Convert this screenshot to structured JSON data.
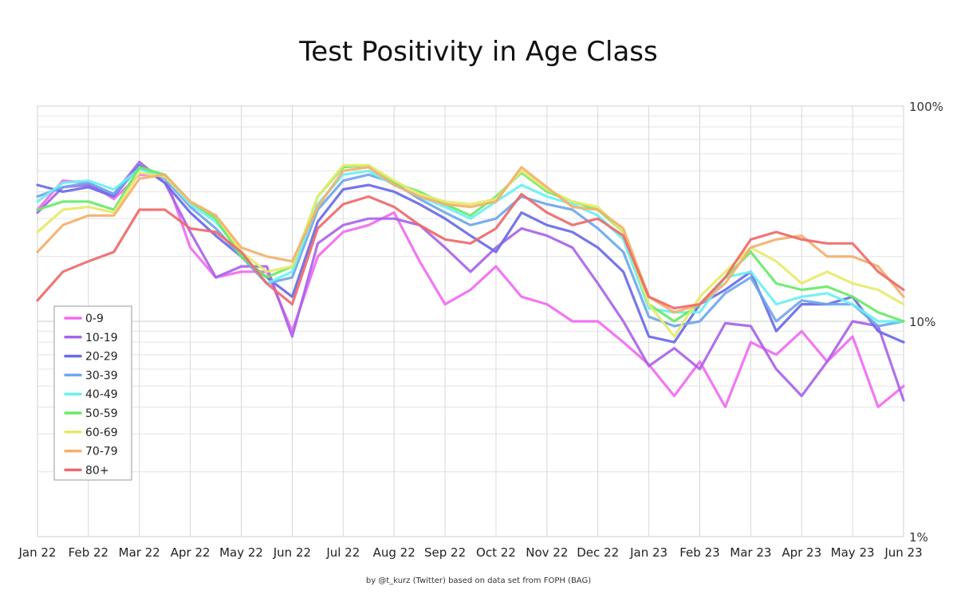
{
  "chart_data": {
    "type": "line",
    "title": "Test Positivity in Age Class",
    "credit": "by @t_kurz (Twitter) based on data set from FOPH (BAG)",
    "yscale": "log",
    "ylim": [
      1,
      100
    ],
    "y_tick_labels": [
      {
        "value": 100,
        "label": "100%"
      },
      {
        "value": 10,
        "label": "10%"
      },
      {
        "value": 1,
        "label": "1%"
      }
    ],
    "x_tick_labels": [
      "Jan 22",
      "Feb 22",
      "Mar 22",
      "Apr 22",
      "May 22",
      "Jun 22",
      "Jul 22",
      "Aug 22",
      "Sep 22",
      "Oct 22",
      "Nov 22",
      "Dec 22",
      "Jan 23",
      "Feb 23",
      "Mar 23",
      "Apr 23",
      "May 23",
      "Jun 23"
    ],
    "grid": true,
    "legend_position": "lower-left",
    "series": [
      {
        "name": "0-9",
        "color": "#f26af2",
        "x": [
          0,
          0.5,
          1,
          1.5,
          2,
          2.5,
          3,
          3.5,
          4,
          4.5,
          5,
          5.5,
          6,
          6.5,
          7,
          7.5,
          8,
          8.5,
          9,
          9.5,
          10,
          10.5,
          11,
          11.5,
          12,
          12.5,
          13,
          13.5,
          14,
          14.5,
          15,
          15.5,
          16,
          16.5,
          17
        ],
        "values": [
          33,
          45,
          44,
          37,
          48,
          48,
          22,
          16,
          17,
          17,
          9,
          20,
          26,
          28,
          32,
          19,
          12,
          14,
          18,
          13,
          12,
          10,
          10,
          8,
          6.3,
          4.5,
          6.5,
          4,
          8,
          7,
          9,
          6.5,
          8.5,
          4,
          5
        ]
      },
      {
        "name": "10-19",
        "color": "#a964e8",
        "x": [
          0,
          0.5,
          1,
          1.5,
          2,
          2.5,
          3,
          3.5,
          4,
          4.5,
          5,
          5.5,
          6,
          6.5,
          7,
          7.5,
          8,
          8.5,
          9,
          9.5,
          10,
          10.5,
          11,
          11.5,
          12,
          12.5,
          13,
          13.5,
          14,
          14.5,
          15,
          15.5,
          16,
          16.5,
          17
        ],
        "values": [
          32,
          42,
          43,
          39,
          55,
          44,
          26,
          16,
          18,
          18,
          8.5,
          23,
          28,
          30,
          30,
          28,
          22,
          17,
          22,
          27,
          25,
          22,
          15,
          10,
          6.2,
          7.5,
          6,
          9.8,
          9.5,
          6,
          4.5,
          6.5,
          10,
          9.5,
          4.3
        ]
      },
      {
        "name": "20-29",
        "color": "#6a6ae8",
        "x": [
          0,
          0.5,
          1,
          1.5,
          2,
          2.5,
          3,
          3.5,
          4,
          4.5,
          5,
          5.5,
          6,
          6.5,
          7,
          7.5,
          8,
          8.5,
          9,
          9.5,
          10,
          10.5,
          11,
          11.5,
          12,
          12.5,
          13,
          13.5,
          14,
          14.5,
          15,
          15.5,
          16,
          16.5,
          17
        ],
        "values": [
          43,
          40,
          42,
          38,
          53,
          44,
          32,
          25,
          20,
          16,
          13,
          29,
          41,
          43,
          40,
          35,
          30,
          25,
          21,
          32,
          28,
          26,
          22,
          17,
          8.5,
          8,
          12,
          14,
          17,
          9,
          12,
          12,
          13,
          9,
          8
        ]
      },
      {
        "name": "30-39",
        "color": "#6fa7ec",
        "x": [
          0,
          0.5,
          1,
          1.5,
          2,
          2.5,
          3,
          3.5,
          4,
          4.5,
          5,
          5.5,
          6,
          6.5,
          7,
          7.5,
          8,
          8.5,
          9,
          9.5,
          10,
          10.5,
          11,
          11.5,
          12,
          12.5,
          13,
          13.5,
          14,
          14.5,
          15,
          15.5,
          16,
          16.5,
          17
        ],
        "values": [
          38,
          42,
          44,
          39,
          52,
          46,
          34,
          27,
          20,
          15,
          16,
          33,
          45,
          48,
          44,
          37,
          32,
          28,
          30,
          38,
          35,
          33,
          27,
          21,
          10.5,
          9.5,
          10,
          13.5,
          16,
          10,
          12.5,
          12,
          12,
          9.5,
          10
        ]
      },
      {
        "name": "40-49",
        "color": "#6af0f0",
        "x": [
          0,
          0.5,
          1,
          1.5,
          2,
          2.5,
          3,
          3.5,
          4,
          4.5,
          5,
          5.5,
          6,
          6.5,
          7,
          7.5,
          8,
          8.5,
          9,
          9.5,
          10,
          10.5,
          11,
          11.5,
          12,
          12.5,
          13,
          13.5,
          14,
          14.5,
          15,
          15.5,
          16,
          16.5,
          17
        ],
        "values": [
          36,
          44,
          45,
          41,
          51,
          47,
          35,
          29,
          21,
          15,
          17,
          35,
          48,
          50,
          43,
          38,
          34,
          30,
          36,
          43,
          38,
          35,
          31,
          24,
          11.5,
          11,
          11,
          16,
          17,
          12,
          13,
          13.5,
          12,
          10,
          10
        ]
      },
      {
        "name": "50-59",
        "color": "#68ea68",
        "x": [
          0,
          0.5,
          1,
          1.5,
          2,
          2.5,
          3,
          3.5,
          4,
          4.5,
          5,
          5.5,
          6,
          6.5,
          7,
          7.5,
          8,
          8.5,
          9,
          9.5,
          10,
          10.5,
          11,
          11.5,
          12,
          12.5,
          13,
          13.5,
          14,
          14.5,
          15,
          15.5,
          16,
          16.5,
          17
        ],
        "values": [
          33,
          36,
          36,
          33,
          52,
          48,
          36,
          30,
          20,
          16,
          18,
          38,
          52,
          53,
          44,
          40,
          35,
          31,
          38,
          49,
          40,
          36,
          33,
          26,
          12,
          10,
          12,
          16,
          21,
          15,
          14,
          14.5,
          13,
          11,
          10
        ]
      },
      {
        "name": "60-69",
        "color": "#e6ea6a",
        "x": [
          0,
          0.5,
          1,
          1.5,
          2,
          2.5,
          3,
          3.5,
          4,
          4.5,
          5,
          5.5,
          6,
          6.5,
          7,
          7.5,
          8,
          8.5,
          9,
          9.5,
          10,
          10.5,
          11,
          11.5,
          12,
          12.5,
          13,
          13.5,
          14,
          14.5,
          15,
          15.5,
          16,
          16.5,
          17
        ],
        "values": [
          26,
          33,
          34,
          32,
          49,
          47,
          36,
          31,
          21,
          17,
          18,
          38,
          53,
          53,
          45,
          39,
          36,
          35,
          37,
          50,
          41,
          36,
          34,
          26,
          12,
          8.5,
          13,
          17,
          22,
          19,
          15,
          17,
          15,
          14,
          12
        ]
      },
      {
        "name": "70-79",
        "color": "#f4b06e",
        "x": [
          0,
          0.5,
          1,
          1.5,
          2,
          2.5,
          3,
          3.5,
          4,
          4.5,
          5,
          5.5,
          6,
          6.5,
          7,
          7.5,
          8,
          8.5,
          9,
          9.5,
          10,
          10.5,
          11,
          11.5,
          12,
          12.5,
          13,
          13.5,
          14,
          14.5,
          15,
          15.5,
          16,
          16.5,
          17
        ],
        "values": [
          21,
          28,
          31,
          31,
          46,
          48,
          36,
          31,
          22,
          20,
          19,
          34,
          50,
          52,
          43,
          38,
          35,
          34,
          36,
          52,
          42,
          34,
          33,
          27,
          13,
          11,
          12,
          15,
          22,
          24,
          25,
          20,
          20,
          18,
          13
        ]
      },
      {
        "name": "80+",
        "color": "#ee6a6a",
        "x": [
          0,
          0.5,
          1,
          1.5,
          2,
          2.5,
          3,
          3.5,
          4,
          4.5,
          5,
          5.5,
          6,
          6.5,
          7,
          7.5,
          8,
          8.5,
          9,
          9.5,
          10,
          10.5,
          11,
          11.5,
          12,
          12.5,
          13,
          13.5,
          14,
          14.5,
          15,
          15.5,
          16,
          16.5,
          17
        ],
        "values": [
          12.5,
          17,
          19,
          21,
          33,
          33,
          27,
          26,
          21,
          15,
          12,
          27,
          35,
          38,
          34,
          28,
          24,
          23,
          27,
          39,
          32,
          28,
          30,
          25,
          13,
          11.5,
          12,
          16,
          24,
          26,
          24,
          23,
          23,
          17,
          14
        ]
      }
    ]
  }
}
